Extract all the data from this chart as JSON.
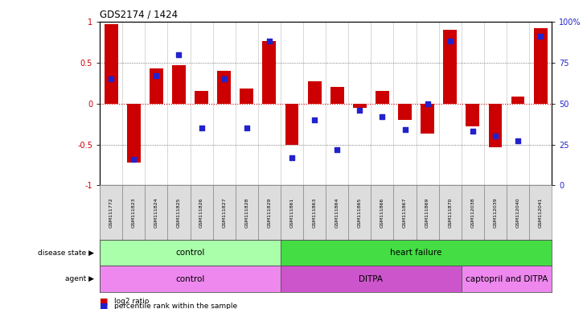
{
  "title": "GDS2174 / 1424",
  "samples": [
    "GSM111772",
    "GSM111823",
    "GSM111824",
    "GSM111825",
    "GSM111826",
    "GSM111827",
    "GSM111828",
    "GSM111829",
    "GSM111861",
    "GSM111863",
    "GSM111864",
    "GSM111865",
    "GSM111866",
    "GSM111867",
    "GSM111869",
    "GSM111870",
    "GSM112038",
    "GSM112039",
    "GSM112040",
    "GSM112041"
  ],
  "log2_ratio": [
    0.97,
    -0.72,
    0.43,
    0.47,
    0.15,
    0.4,
    0.18,
    0.76,
    -0.5,
    0.27,
    0.2,
    -0.05,
    0.15,
    -0.2,
    -0.37,
    0.9,
    -0.28,
    -0.53,
    0.08,
    0.92
  ],
  "percentile": [
    0.65,
    0.16,
    0.67,
    0.8,
    0.35,
    0.65,
    0.35,
    0.88,
    0.17,
    0.4,
    0.22,
    0.46,
    0.42,
    0.34,
    0.5,
    0.88,
    0.33,
    0.3,
    0.27,
    0.91
  ],
  "bar_color": "#cc0000",
  "dot_color": "#2222cc",
  "disease_state": [
    {
      "label": "control",
      "start": 0,
      "end": 8,
      "color": "#aaffaa"
    },
    {
      "label": "heart failure",
      "start": 8,
      "end": 20,
      "color": "#44dd44"
    }
  ],
  "agent": [
    {
      "label": "control",
      "start": 0,
      "end": 8,
      "color": "#ee88ee"
    },
    {
      "label": "DITPA",
      "start": 8,
      "end": 16,
      "color": "#cc55cc"
    },
    {
      "label": "captopril and DITPA",
      "start": 16,
      "end": 20,
      "color": "#ee88ee"
    }
  ],
  "ylim": [
    -1.0,
    1.0
  ],
  "yticks_left": [
    -1,
    -0.5,
    0,
    0.5,
    1
  ],
  "yticks_right": [
    0,
    25,
    50,
    75,
    100
  ],
  "zero_line_color": "#cc0000",
  "dotted_line_color": "#555555"
}
